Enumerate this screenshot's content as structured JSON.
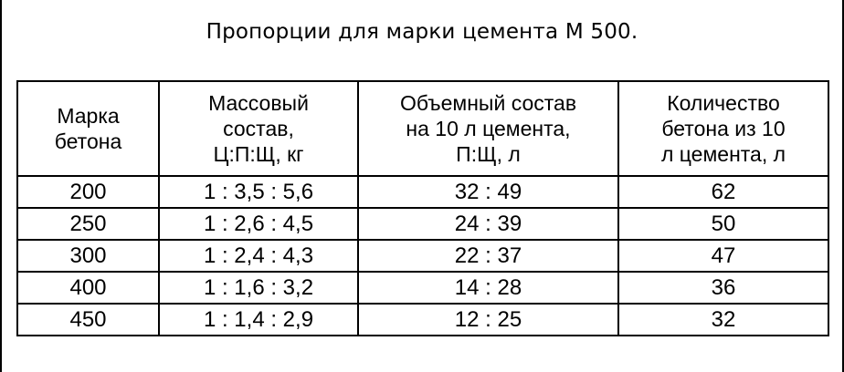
{
  "title": "Пропорции для марки цемента М 500.",
  "table": {
    "headers": [
      [
        "Марка",
        "бетона"
      ],
      [
        "Массовый",
        "состав,",
        "Ц:П:Щ, кг"
      ],
      [
        "Объемный состав",
        "на 10 л цемента,",
        "П:Щ, л"
      ],
      [
        "Количество",
        "бетона из 10",
        "л цемента, л"
      ]
    ],
    "rows": [
      [
        "200",
        "1 : 3,5 : 5,6",
        "32 : 49",
        "62"
      ],
      [
        "250",
        "1 : 2,6 : 4,5",
        "24 : 39",
        "50"
      ],
      [
        "300",
        "1 : 2,4 : 4,3",
        "22 : 37",
        "47"
      ],
      [
        "400",
        "1 : 1,6 : 3,2",
        "14 : 28",
        "36"
      ],
      [
        "450",
        "1 : 1,4 : 2,9",
        "12 : 25",
        "32"
      ]
    ]
  }
}
